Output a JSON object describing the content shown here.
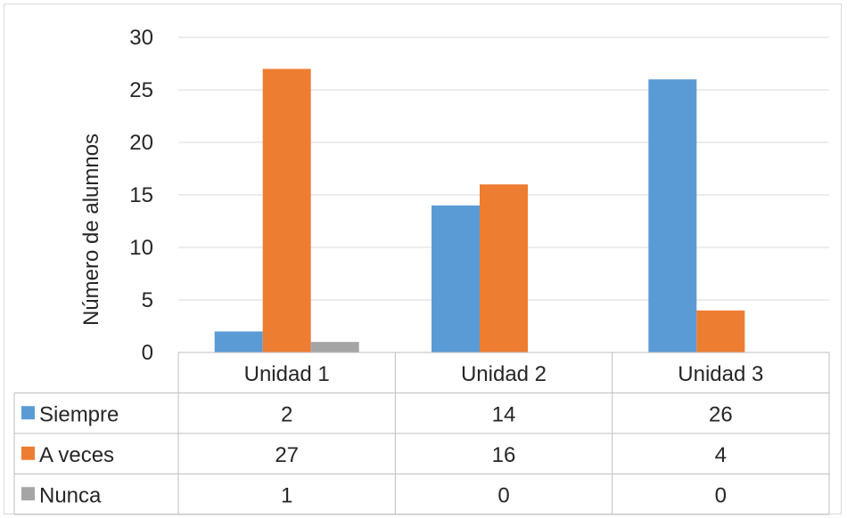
{
  "chart_data": {
    "type": "bar",
    "xlabel": "",
    "ylabel": "Número de alumnos",
    "ylim": [
      0,
      30
    ],
    "yticks": [
      0,
      5,
      10,
      15,
      20,
      25,
      30
    ],
    "categories": [
      "Unidad 1",
      "Unidad 2",
      "Unidad 3"
    ],
    "series": [
      {
        "name": "Siempre",
        "values": [
          2,
          14,
          26
        ],
        "color": "#5b9bd5"
      },
      {
        "name": "A veces",
        "values": [
          27,
          16,
          4
        ],
        "color": "#ed7d31"
      },
      {
        "name": "Nunca",
        "values": [
          1,
          0,
          0
        ],
        "color": "#a5a5a5"
      }
    ],
    "grid": true,
    "legend": "data-table"
  }
}
